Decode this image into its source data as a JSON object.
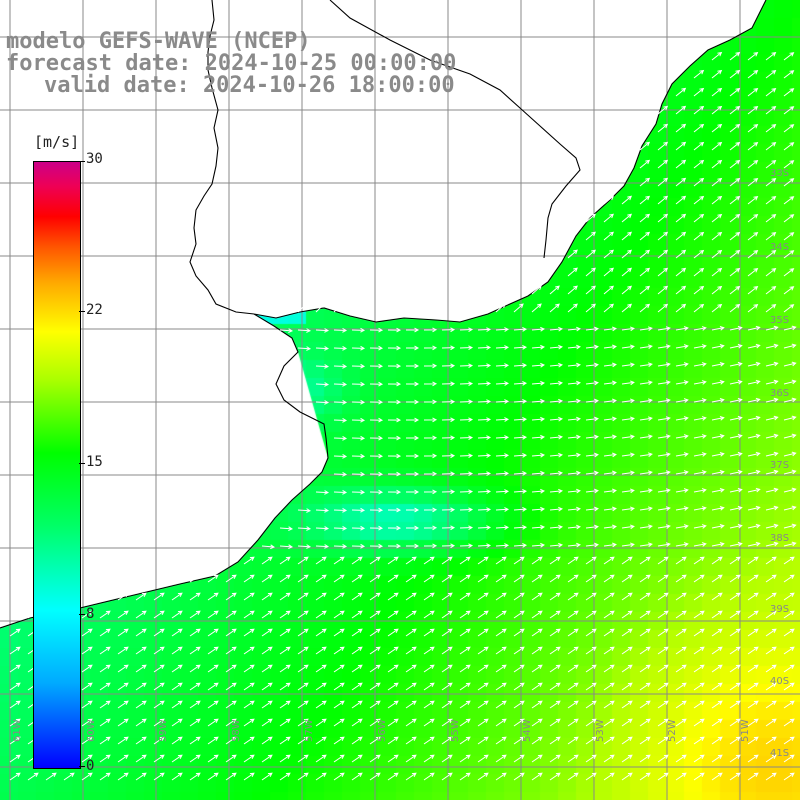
{
  "title": {
    "line1": "modelo GEFS-WAVE (NCEP)",
    "line2": "forecast date: 2024-10-25 00:00:00",
    "line3": "valid date: 2024-10-26 18:00:00"
  },
  "legend": {
    "unit": "[m/s]",
    "ticks": [
      "30",
      "22",
      "15",
      "8",
      "0"
    ]
  },
  "axes": {
    "lon_labels": [
      "61W",
      "60W",
      "59W",
      "58W",
      "57W",
      "56W",
      "55W",
      "54W",
      "53W",
      "52W",
      "51W"
    ],
    "lat_labels": [
      "33S",
      "34S",
      "35S",
      "36S",
      "37S",
      "38S",
      "39S",
      "40S",
      "41S"
    ]
  },
  "colors": {
    "land": "#ffffff",
    "coastline": "#000000",
    "grid": "#888888",
    "arrows": "#ffffff",
    "title_text": "#8a8a8a"
  },
  "map": {
    "variable": "wind speed",
    "arrows_shown": true,
    "grid_shown": true
  }
}
